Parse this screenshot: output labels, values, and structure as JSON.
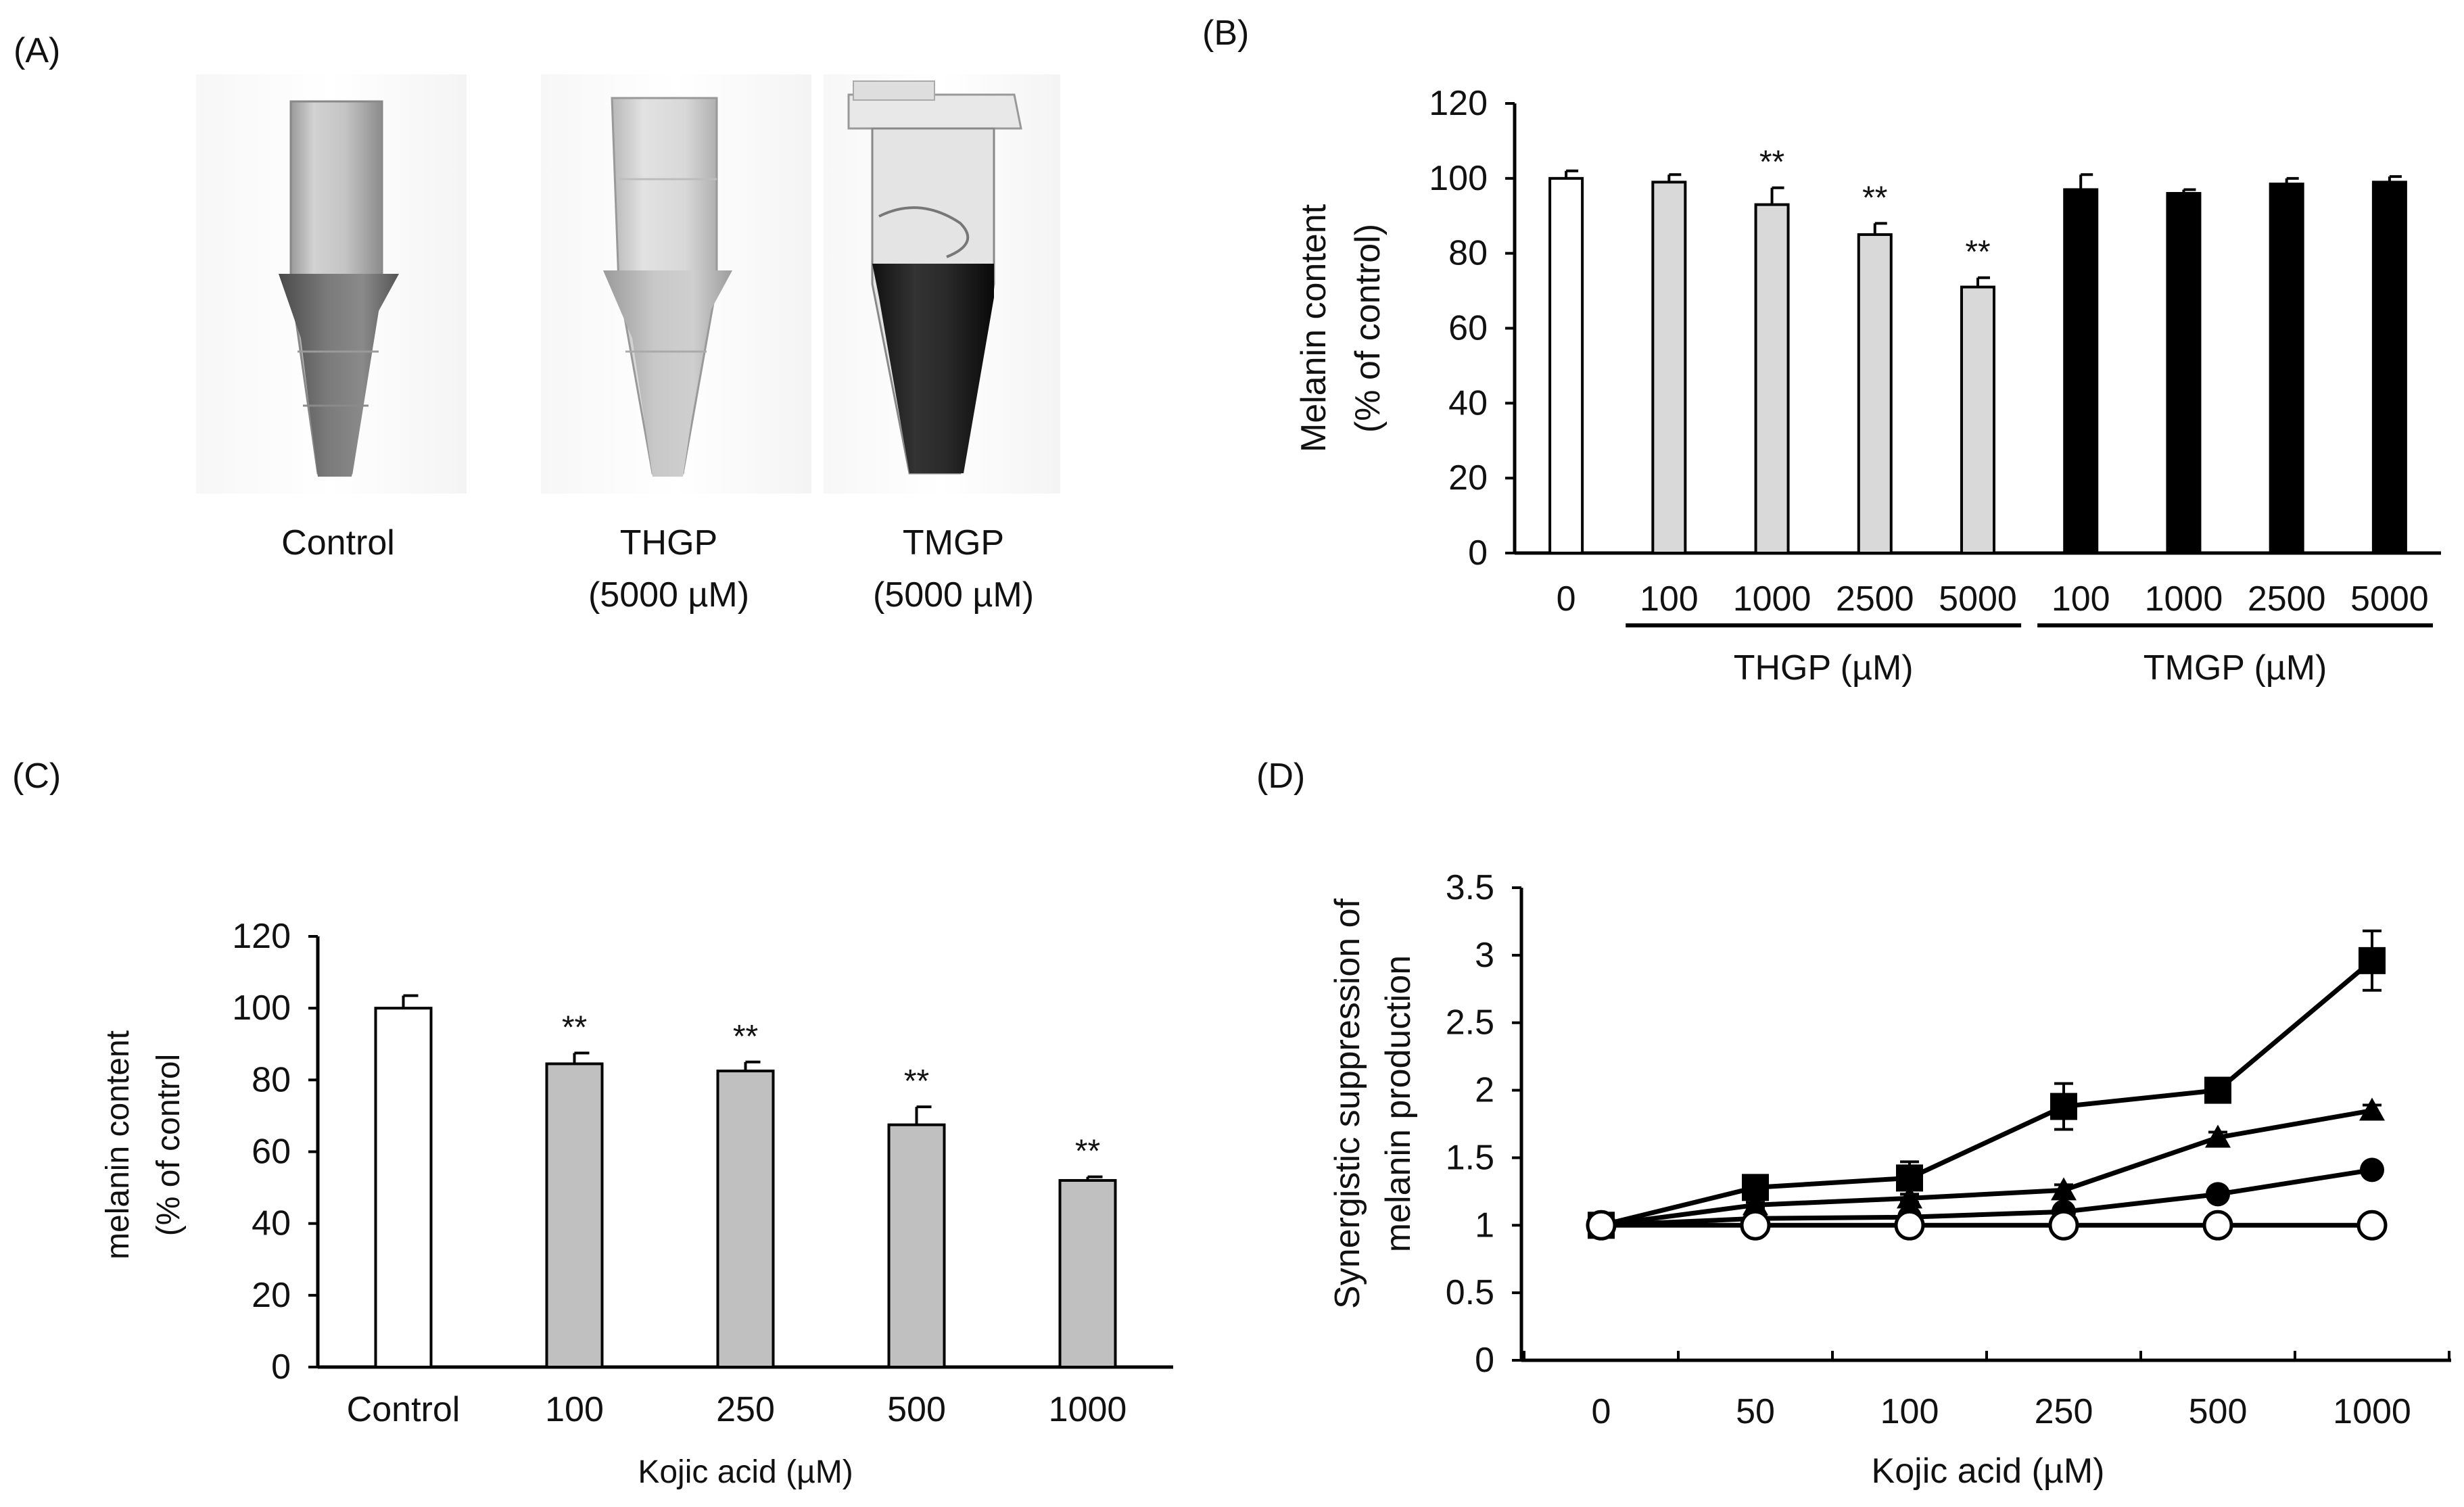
{
  "panel_labels": {
    "a": "(A)",
    "b": "(B)",
    "c": "(C)",
    "d": "(D)"
  },
  "panelA": {
    "tubes": [
      {
        "name": "Control",
        "sub": ""
      },
      {
        "name": "THGP",
        "sub": "(5000 µM)"
      },
      {
        "name": "TMGP",
        "sub": "(5000 µM)"
      }
    ]
  },
  "chart_data": [
    {
      "id": "B",
      "type": "bar",
      "ylabel": "Melanin content",
      "ylabel2": "(% of control)",
      "ylim": [
        0,
        120
      ],
      "yticks": [
        "0",
        "20",
        "40",
        "60",
        "80",
        "100",
        "120"
      ],
      "categories": [
        "0",
        "100",
        "1000",
        "2500",
        "5000",
        "100",
        "1000",
        "2500",
        "5000"
      ],
      "values": [
        100,
        99,
        93,
        85,
        71,
        97,
        96,
        98.5,
        99
      ],
      "errors": [
        2,
        2,
        4.5,
        3,
        2.5,
        4,
        1,
        1.5,
        1.5
      ],
      "fills": [
        "#ffffff",
        "#d9d9d9",
        "#d9d9d9",
        "#d9d9d9",
        "#d9d9d9",
        "#000000",
        "#000000",
        "#000000",
        "#000000"
      ],
      "significance": [
        "",
        "",
        "**",
        "**",
        "**",
        "",
        "",
        "",
        ""
      ],
      "groups": [
        {
          "label": "THGP (µM)",
          "from": 1,
          "to": 4
        },
        {
          "label": "TMGP (µM)",
          "from": 5,
          "to": 8
        }
      ]
    },
    {
      "id": "C",
      "type": "bar",
      "ylabel": "melanin content",
      "ylabel2": "(% of control",
      "xlabel": "Kojic acid (µM)",
      "ylim": [
        0,
        120
      ],
      "yticks": [
        "0",
        "20",
        "40",
        "60",
        "80",
        "100",
        "120"
      ],
      "categories": [
        "Control",
        "100",
        "250",
        "500",
        "1000"
      ],
      "values": [
        100,
        84.5,
        82.5,
        67.5,
        52
      ],
      "errors": [
        3.5,
        3,
        2.5,
        5,
        1
      ],
      "fills": [
        "#ffffff",
        "#c0c0c0",
        "#c0c0c0",
        "#c0c0c0",
        "#c0c0c0"
      ],
      "significance": [
        "",
        "**",
        "**",
        "**",
        "**"
      ]
    },
    {
      "id": "D",
      "type": "line",
      "ylabel": "Synergistic suppression of",
      "ylabel2": "melanin production",
      "xlabel": "Kojic acid (µM)",
      "ylim": [
        0,
        3.5
      ],
      "yticks": [
        "0",
        "0.5",
        "1",
        "1.5",
        "2",
        "2.5",
        "3",
        "3.5"
      ],
      "categories": [
        "0",
        "50",
        "100",
        "250",
        "500",
        "1000"
      ],
      "series": [
        {
          "marker": "square",
          "values": [
            1,
            1.28,
            1.35,
            1.88,
            2.0,
            2.96
          ],
          "errors": [
            0,
            0.03,
            0.12,
            0.17,
            0.05,
            0.22
          ]
        },
        {
          "marker": "triangle",
          "values": [
            1,
            1.15,
            1.2,
            1.26,
            1.65,
            1.85
          ],
          "errors": [
            0,
            0.02,
            0.03,
            0.04,
            0.04,
            0.04
          ]
        },
        {
          "marker": "circle",
          "values": [
            1,
            1.05,
            1.06,
            1.1,
            1.23,
            1.41
          ],
          "errors": [
            0,
            0.02,
            0.02,
            0.02,
            0.03,
            0.04
          ]
        },
        {
          "marker": "open-circle",
          "values": [
            1,
            1,
            1,
            1,
            1,
            1
          ],
          "errors": [
            0,
            0,
            0,
            0,
            0,
            0
          ]
        }
      ]
    }
  ],
  "colors": {
    "axis": "#000000",
    "tube_dark": "#2c2c2c",
    "tube_light": "#bcbcbc"
  }
}
